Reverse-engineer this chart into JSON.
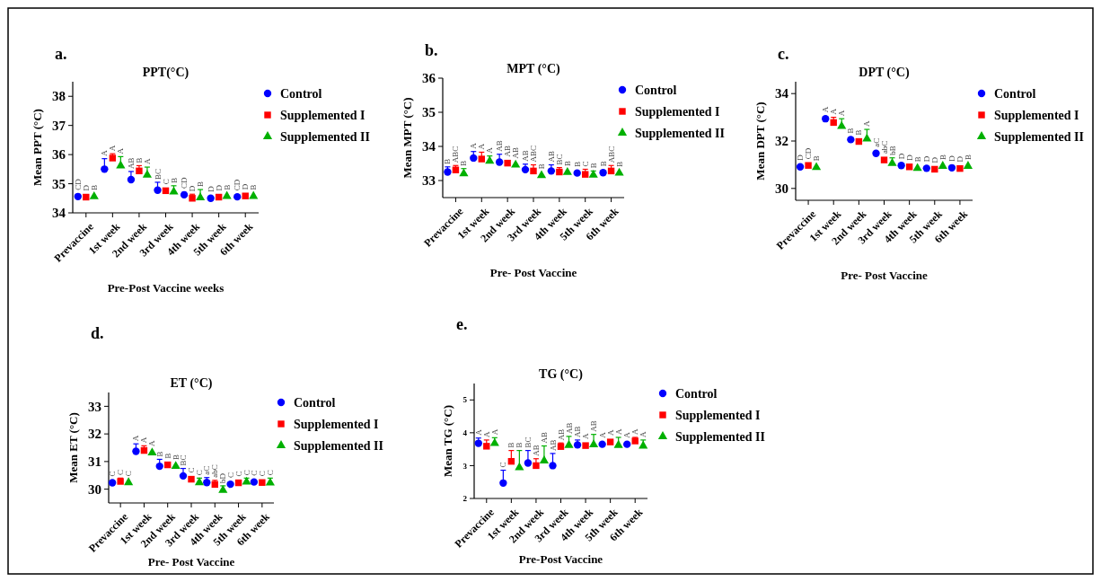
{
  "chart_data": [
    {
      "type": "scatter",
      "title": "PPT(°C)",
      "xlabel": "Pre-Post Vaccine weeks",
      "ylabel": "Mean PPT (°C)",
      "annotations": [
        "a."
      ],
      "categories": [
        "Prevaccine",
        "1st week",
        "2nd week",
        "3rd week",
        "4th week",
        "5th week",
        "6th week"
      ],
      "ylim": [
        34,
        38.5
      ],
      "yticks": [
        34,
        35,
        36,
        37,
        38
      ],
      "legend": "right",
      "grid": false,
      "series": [
        {
          "name": "Control",
          "color": "#0000ff",
          "marker": "circle",
          "values": [
            34.56,
            35.5,
            35.14,
            34.78,
            34.62,
            34.5,
            34.55
          ],
          "errors": [
            null,
            [
              35.5,
              35.86
            ],
            [
              35.14,
              35.42
            ],
            [
              34.78,
              35.05
            ],
            [
              34.62,
              34.7
            ],
            null,
            null
          ],
          "value_labels": [
            "CD",
            "A",
            "AB",
            "BC",
            "CD",
            "D",
            "CD"
          ]
        },
        {
          "name": "Supplemented I",
          "color": "#ff0000",
          "marker": "square",
          "values": [
            34.54,
            35.88,
            35.44,
            34.76,
            34.5,
            34.54,
            34.58
          ],
          "errors": [
            null,
            [
              35.88,
              36.03
            ],
            [
              35.44,
              35.62
            ],
            null,
            [
              34.5,
              34.64
            ],
            null,
            null
          ],
          "value_labels": [
            "D",
            "A",
            "B",
            "C",
            "D",
            "D",
            "D"
          ]
        },
        {
          "name": "Supplemented II",
          "color": "#00b000",
          "marker": "triangle",
          "values": [
            34.56,
            35.62,
            35.3,
            34.72,
            34.52,
            34.57,
            34.57
          ],
          "errors": [
            null,
            [
              35.62,
              35.93
            ],
            [
              35.3,
              35.57
            ],
            [
              34.72,
              34.93
            ],
            [
              34.52,
              34.8
            ],
            null,
            null
          ],
          "value_labels": [
            "B",
            "A",
            "A",
            "B",
            "B",
            "B",
            "B"
          ]
        }
      ]
    },
    {
      "type": "scatter",
      "title": "MPT (°C)",
      "xlabel": "Pre- Post Vaccine",
      "ylabel": "Mean MPT (°C)",
      "annotations": [
        "b."
      ],
      "categories": [
        "Prevaccine",
        "1st week",
        "2nd week",
        "3rd week",
        "4th week",
        "5th week",
        "6th week"
      ],
      "ylim": [
        32.5,
        36
      ],
      "yticks": [
        33,
        34,
        35,
        36
      ],
      "legend": "right",
      "grid": false,
      "series": [
        {
          "name": "Control",
          "color": "#0000ff",
          "marker": "circle",
          "values": [
            33.25,
            33.66,
            33.54,
            33.32,
            33.28,
            33.22,
            33.23
          ],
          "errors": [
            [
              33.25,
              33.4
            ],
            [
              33.66,
              33.85
            ],
            [
              33.54,
              33.77
            ],
            [
              33.32,
              33.48
            ],
            [
              33.28,
              33.46
            ],
            null,
            null
          ],
          "value_labels": [
            "B",
            "A",
            "AB",
            "AB",
            "AB",
            "B",
            "B"
          ]
        },
        {
          "name": "Supplemented I",
          "color": "#ff0000",
          "marker": "square",
          "values": [
            33.31,
            33.63,
            33.51,
            33.28,
            33.25,
            33.18,
            33.28
          ],
          "errors": [
            [
              33.31,
              33.44
            ],
            [
              33.63,
              33.83
            ],
            null,
            [
              33.28,
              33.46
            ],
            [
              33.25,
              33.38
            ],
            [
              33.18,
              33.33
            ],
            [
              33.28,
              33.44
            ]
          ],
          "value_labels": [
            "ABC",
            "A",
            "AB",
            "ABC",
            "BC",
            "C",
            "ABC"
          ]
        },
        {
          "name": "Supplemented II",
          "color": "#00b000",
          "marker": "triangle",
          "values": [
            33.2,
            33.57,
            33.46,
            33.15,
            33.24,
            33.16,
            33.22
          ],
          "errors": [
            [
              33.2,
              33.35
            ],
            [
              33.57,
              33.72
            ],
            null,
            null,
            null,
            [
              33.16,
              33.28
            ],
            null
          ],
          "value_labels": [
            "B",
            "A",
            "AB",
            "B",
            "B",
            "B",
            "B"
          ]
        }
      ]
    },
    {
      "type": "scatter",
      "title": "DPT (°C)",
      "xlabel": "Pre- Post Vaccine",
      "ylabel": "Mean DPT (°C)",
      "annotations": [
        "c."
      ],
      "categories": [
        "Prevaccine",
        "1st week",
        "2nd week",
        "3rd week",
        "4th week",
        "5th week",
        "6th week"
      ],
      "ylim": [
        29.5,
        34.5
      ],
      "yticks": [
        30,
        32,
        34
      ],
      "legend": "right",
      "grid": false,
      "series": [
        {
          "name": "Control",
          "color": "#0000ff",
          "marker": "circle",
          "values": [
            30.91,
            32.94,
            32.06,
            31.48,
            30.97,
            30.85,
            30.87
          ],
          "errors": [
            null,
            null,
            null,
            null,
            null,
            null,
            null
          ],
          "value_labels": [
            "D",
            "A",
            "B",
            "aC",
            "D",
            "D",
            "D"
          ]
        },
        {
          "name": "Supplemented I",
          "color": "#ff0000",
          "marker": "square",
          "values": [
            30.97,
            32.78,
            31.98,
            31.2,
            30.91,
            30.81,
            30.84
          ],
          "errors": [
            null,
            [
              32.78,
              33.0
            ],
            null,
            null,
            null,
            null,
            null
          ],
          "value_labels": [
            "CD",
            "A",
            "B",
            "abC",
            "D",
            "D",
            "D"
          ]
        },
        {
          "name": "Supplemented II",
          "color": "#00b000",
          "marker": "triangle",
          "values": [
            30.89,
            32.62,
            32.09,
            31.06,
            30.85,
            30.94,
            30.94
          ],
          "errors": [
            null,
            [
              32.62,
              32.94
            ],
            [
              32.09,
              32.49
            ],
            [
              31.06,
              31.29
            ],
            null,
            null,
            null
          ],
          "value_labels": [
            "B",
            "A",
            "A",
            "bB",
            "B",
            "B",
            "B"
          ]
        }
      ]
    },
    {
      "type": "scatter",
      "title": "ET (°C)",
      "xlabel": "Pre- Post Vaccine",
      "ylabel": "Mean ET (°C)",
      "annotations": [
        "d."
      ],
      "categories": [
        "Prevaccine",
        "1st week",
        "2nd week",
        "3rd week",
        "4th week",
        "5th week",
        "6th week"
      ],
      "ylim": [
        29.5,
        33.5
      ],
      "yticks": [
        30,
        31,
        32,
        33
      ],
      "legend": "right",
      "grid": false,
      "series": [
        {
          "name": "Control",
          "color": "#0000ff",
          "marker": "circle",
          "values": [
            30.23,
            31.37,
            30.83,
            30.48,
            30.24,
            30.18,
            30.26
          ],
          "errors": [
            null,
            [
              31.37,
              31.64
            ],
            [
              30.83,
              31.08
            ],
            [
              30.48,
              30.75
            ],
            [
              30.24,
              30.42
            ],
            null,
            null
          ],
          "value_labels": [
            "C",
            "A",
            "B",
            "BC",
            "aC",
            "C",
            "C"
          ]
        },
        {
          "name": "Supplemented I",
          "color": "#ff0000",
          "marker": "square",
          "values": [
            30.28,
            31.4,
            30.88,
            30.36,
            30.17,
            30.23,
            30.24
          ],
          "errors": [
            [
              30.28,
              30.4
            ],
            [
              31.4,
              31.57
            ],
            null,
            null,
            [
              30.17,
              30.32
            ],
            null,
            null
          ],
          "value_labels": [
            "C",
            "A",
            "B",
            "C",
            "abC",
            "C",
            "C"
          ]
        },
        {
          "name": "Supplemented II",
          "color": "#00b000",
          "marker": "triangle",
          "values": [
            30.24,
            31.32,
            30.83,
            30.24,
            29.96,
            30.26,
            30.23
          ],
          "errors": [
            null,
            null,
            null,
            [
              30.24,
              30.4
            ],
            [
              29.96,
              30.12
            ],
            [
              30.26,
              30.4
            ],
            [
              30.23,
              30.4
            ]
          ],
          "value_labels": [
            "C",
            "A",
            "B",
            "C",
            "bD",
            "C",
            "C"
          ]
        }
      ]
    },
    {
      "type": "scatter",
      "title": "TG (°C)",
      "xlabel": "Pre-Post Vaccine",
      "ylabel": "Mean TG (°C)",
      "annotations": [
        "e."
      ],
      "categories": [
        "Prevaccine",
        "1st week",
        "2nd week",
        "3rd week",
        "4th week",
        "5th week",
        "6th week"
      ],
      "ylim": [
        2,
        5.5
      ],
      "yticks": [
        2,
        3,
        4,
        5
      ],
      "legend": "right",
      "grid": false,
      "series": [
        {
          "name": "Control",
          "color": "#0000ff",
          "marker": "circle",
          "values": [
            3.68,
            2.47,
            3.08,
            3.0,
            3.63,
            3.65,
            3.65
          ],
          "errors": [
            [
              3.68,
              3.84
            ],
            [
              2.47,
              2.86
            ],
            [
              3.08,
              3.46
            ],
            [
              3.0,
              3.37
            ],
            [
              3.63,
              3.78
            ],
            null,
            null
          ],
          "value_labels": [
            "A",
            "C",
            "BC",
            "AB",
            "AB",
            "A",
            "A"
          ]
        },
        {
          "name": "Supplemented I",
          "color": "#ff0000",
          "marker": "square",
          "values": [
            3.59,
            3.13,
            3.0,
            3.58,
            3.61,
            3.72,
            3.75
          ],
          "errors": [
            [
              3.59,
              3.78
            ],
            [
              3.13,
              3.46
            ],
            [
              3.0,
              3.21
            ],
            [
              3.58,
              3.69
            ],
            null,
            null,
            [
              3.75,
              3.86
            ]
          ],
          "value_labels": [
            "A",
            "B",
            "AB",
            "AB",
            "A",
            "A",
            "A"
          ]
        },
        {
          "name": "Supplemented II",
          "color": "#00b000",
          "marker": "triangle",
          "values": [
            3.68,
            2.94,
            3.15,
            3.62,
            3.64,
            3.62,
            3.6
          ],
          "errors": [
            [
              3.68,
              3.85
            ],
            [
              2.94,
              3.46
            ],
            [
              3.15,
              3.6
            ],
            [
              3.62,
              3.89
            ],
            [
              3.64,
              3.95
            ],
            [
              3.62,
              3.86
            ],
            [
              3.6,
              3.78
            ]
          ],
          "value_labels": [
            "A",
            "B",
            "AB",
            "AB",
            "AB",
            "A",
            "A"
          ]
        }
      ]
    }
  ]
}
